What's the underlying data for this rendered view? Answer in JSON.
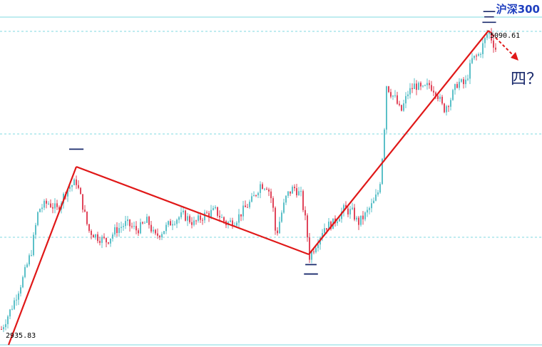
{
  "title": "沪深300",
  "colors": {
    "up": "#5bc0c8",
    "down": "#e0455a",
    "grid": "#7fd8e0",
    "wave_line": "#e01818",
    "label": "#1a2a6c",
    "title": "#1f3fbf"
  },
  "chart_data": {
    "type": "candlestick",
    "title": "沪深300",
    "low_label": "2935.83",
    "high_label": "5090.61",
    "ylim": [
      2900,
      5200
    ],
    "grid": "horizontal dashed",
    "wave_points": [
      {
        "label": "",
        "x": 0,
        "y": 2935.83
      },
      {
        "label": "一",
        "x": 105,
        "y": 4000
      },
      {
        "label": "二",
        "x": 432,
        "y": 3460
      },
      {
        "label": "三",
        "x": 683,
        "y": 5090.61
      }
    ],
    "projection": {
      "label": "四？",
      "from_x": 683,
      "from_y": 5090.61,
      "to_x": 722,
      "to_y": 4960
    },
    "anchors": [
      [
        0,
        2935.83
      ],
      [
        15,
        3100
      ],
      [
        30,
        3300
      ],
      [
        42,
        3500
      ],
      [
        52,
        3800
      ],
      [
        65,
        3850
      ],
      [
        78,
        3800
      ],
      [
        92,
        3950
      ],
      [
        105,
        4000
      ],
      [
        113,
        3850
      ],
      [
        122,
        3650
      ],
      [
        135,
        3600
      ],
      [
        148,
        3570
      ],
      [
        160,
        3650
      ],
      [
        175,
        3700
      ],
      [
        190,
        3650
      ],
      [
        205,
        3720
      ],
      [
        215,
        3600
      ],
      [
        225,
        3640
      ],
      [
        240,
        3720
      ],
      [
        255,
        3760
      ],
      [
        270,
        3700
      ],
      [
        285,
        3760
      ],
      [
        300,
        3790
      ],
      [
        315,
        3700
      ],
      [
        328,
        3720
      ],
      [
        340,
        3800
      ],
      [
        352,
        3870
      ],
      [
        363,
        3980
      ],
      [
        373,
        3970
      ],
      [
        380,
        3850
      ],
      [
        385,
        3600
      ],
      [
        392,
        3760
      ],
      [
        400,
        3900
      ],
      [
        410,
        3960
      ],
      [
        420,
        3900
      ],
      [
        427,
        3700
      ],
      [
        432,
        3460
      ],
      [
        442,
        3560
      ],
      [
        452,
        3670
      ],
      [
        465,
        3700
      ],
      [
        480,
        3800
      ],
      [
        492,
        3780
      ],
      [
        500,
        3700
      ],
      [
        510,
        3760
      ],
      [
        522,
        3850
      ],
      [
        530,
        3950
      ],
      [
        536,
        4300
      ],
      [
        540,
        4700
      ],
      [
        545,
        4650
      ],
      [
        552,
        4600
      ],
      [
        560,
        4500
      ],
      [
        570,
        4640
      ],
      [
        580,
        4700
      ],
      [
        590,
        4660
      ],
      [
        600,
        4700
      ],
      [
        610,
        4650
      ],
      [
        620,
        4520
      ],
      [
        630,
        4600
      ],
      [
        640,
        4720
      ],
      [
        650,
        4700
      ],
      [
        660,
        4880
      ],
      [
        670,
        4920
      ],
      [
        683,
        5090.61
      ],
      [
        688,
        5020
      ],
      [
        693,
        4960
      ]
    ]
  }
}
